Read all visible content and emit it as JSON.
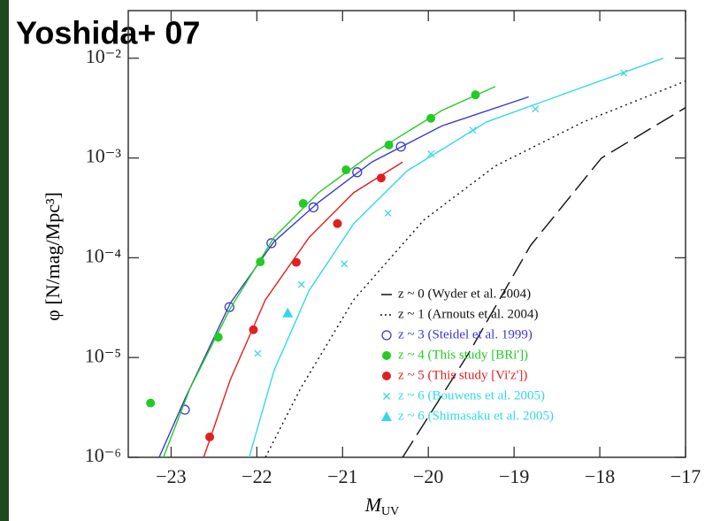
{
  "chart_data": {
    "type": "scatter",
    "title": "Yoshida+ 07",
    "x_label": "M",
    "x_label_sub": "UV",
    "y_label": "φ [N/mag/Mpc³]",
    "log_y": true,
    "xlim": [
      -23.5,
      -17
    ],
    "ylim": [
      1e-06,
      0.03
    ],
    "xticks": [
      {
        "value": -23,
        "label": "−23"
      },
      {
        "value": -22,
        "label": "−22"
      },
      {
        "value": -21,
        "label": "−21"
      },
      {
        "value": -20,
        "label": "−20"
      },
      {
        "value": -19,
        "label": "−19"
      },
      {
        "value": -18,
        "label": "−18"
      },
      {
        "value": -17,
        "label": "−17"
      }
    ],
    "yticks": [
      {
        "value": 1e-06,
        "label": "10⁻⁶"
      },
      {
        "value": 1e-05,
        "label": "10⁻⁵"
      },
      {
        "value": 0.0001,
        "label": "10⁻⁴"
      },
      {
        "value": 0.001,
        "label": "10⁻³"
      },
      {
        "value": 0.01,
        "label": "10⁻²"
      }
    ],
    "series": [
      {
        "name": "z ~ 0 (Wyder et al. 2004)",
        "color": "#111111",
        "marker": "dash",
        "dash": "22 8",
        "fit_x": [
          -20.3,
          -19.53,
          -18.81,
          -17.98,
          -17.0
        ],
        "fit_values": [
          1e-06,
          1.1e-05,
          0.000132,
          0.001,
          0.0032
        ]
      },
      {
        "name": "z ~ 1 (Arnouts et al. 2004)",
        "color": "#111111",
        "marker": "dot",
        "dash": "2 4",
        "fit_x": [
          -21.9,
          -21.49,
          -20.87,
          -20.05,
          -19.22,
          -18.19,
          -17.0
        ],
        "fit_values": [
          1e-06,
          4.9e-06,
          3.8e-05,
          0.00024,
          0.00083,
          0.0023,
          0.0059
        ]
      },
      {
        "name": "z ~ 3 (Steidel et al. 1999)",
        "color": "#3a3ad0",
        "marker": "open-circle",
        "dash": "",
        "x": [
          -22.84,
          -22.32,
          -21.83,
          -21.34,
          -20.83,
          -20.32
        ],
        "values": [
          3e-06,
          3.2e-05,
          0.00014,
          0.00032,
          0.00072,
          0.0013
        ],
        "fit_x": [
          -23.14,
          -22.83,
          -22.31,
          -21.8,
          -21.28,
          -20.66,
          -19.84,
          -18.83
        ],
        "fit_values": [
          1e-06,
          4e-06,
          3.5e-05,
          0.000145,
          0.00036,
          0.00091,
          0.0021,
          0.0041
        ]
      },
      {
        "name": "z ~ 4 (This study [BRi'])",
        "color": "#22cc22",
        "marker": "circle",
        "dash": "",
        "x": [
          -23.24,
          -22.45,
          -21.96,
          -21.46,
          -20.96,
          -20.46,
          -19.97,
          -19.45
        ],
        "values": [
          3.5e-06,
          1.6e-05,
          9.1e-05,
          0.00035,
          0.00076,
          0.00135,
          0.0025,
          0.0043
        ],
        "fit_x": [
          -23.09,
          -22.78,
          -22.31,
          -21.8,
          -21.28,
          -20.66,
          -19.84,
          -19.22
        ],
        "fit_values": [
          1e-06,
          4.9e-06,
          3.1e-05,
          0.00016,
          0.00045,
          0.0011,
          0.003,
          0.0052
        ]
      },
      {
        "name": "z ~ 5 (This study [Vi'z'])",
        "color": "#e02020",
        "marker": "circle",
        "dash": "",
        "x": [
          -22.55,
          -22.04,
          -21.54,
          -21.06,
          -20.55
        ],
        "values": [
          1.6e-06,
          1.9e-05,
          9e-05,
          0.00022,
          0.00063
        ],
        "fit_x": [
          -22.62,
          -22.31,
          -21.9,
          -21.39,
          -20.87,
          -20.3
        ],
        "fit_values": [
          1e-06,
          6e-06,
          3.8e-05,
          0.00016,
          0.00045,
          0.00091
        ]
      },
      {
        "name": "z ~ 6 (Bouwens et al. 2005)",
        "color": "#33d8e8",
        "marker": "cross",
        "dash": "",
        "x": [
          -21.99,
          -21.48,
          -20.98,
          -20.47,
          -19.97,
          -19.48,
          -18.75,
          -17.72
        ],
        "values": [
          1.1e-05,
          5.4e-05,
          8.7e-05,
          0.00028,
          0.0011,
          0.0019,
          0.0031,
          0.0071
        ],
        "fit_x": [
          -22.09,
          -21.8,
          -21.39,
          -20.87,
          -20.25,
          -19.32,
          -18.29,
          -17.26
        ],
        "fit_values": [
          1e-06,
          7.4e-06,
          4.7e-05,
          0.00022,
          0.00074,
          0.0023,
          0.0048,
          0.01
        ]
      },
      {
        "name": "z ~ 6 (Shimasaku et al. 2005)",
        "color": "#33d8e8",
        "marker": "triangle",
        "dash": "",
        "x": [
          -21.64
        ],
        "values": [
          2.8e-05
        ]
      }
    ]
  }
}
